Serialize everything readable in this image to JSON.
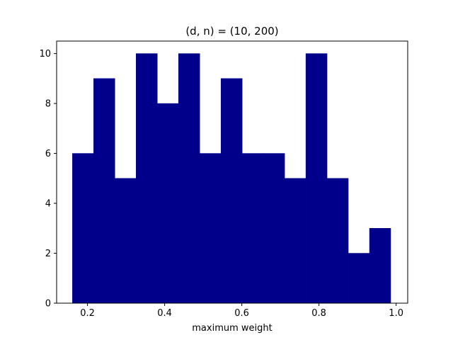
{
  "chart_data": {
    "type": "bar",
    "title": "(d, n) = (10, 200)",
    "xlabel": "maximum weight",
    "ylabel": "",
    "bin_edges": [
      0.161,
      0.216,
      0.271,
      0.326,
      0.381,
      0.436,
      0.491,
      0.546,
      0.601,
      0.656,
      0.711,
      0.766,
      0.821,
      0.876,
      0.931,
      0.986
    ],
    "values": [
      6,
      9,
      5,
      10,
      8,
      10,
      6,
      9,
      6,
      6,
      5,
      10,
      5,
      2,
      3
    ],
    "xlim": [
      0.12,
      1.03
    ],
    "ylim": [
      0,
      10.5
    ],
    "xticks": [
      0.2,
      0.4,
      0.6,
      0.8,
      1.0
    ],
    "xtick_labels": [
      "0.2",
      "0.4",
      "0.6",
      "0.8",
      "1.0"
    ],
    "yticks": [
      0,
      2,
      4,
      6,
      8,
      10
    ],
    "ytick_labels": [
      "0",
      "2",
      "4",
      "6",
      "8",
      "10"
    ],
    "bar_color": "#00008b",
    "grid": false,
    "legend": "none"
  }
}
